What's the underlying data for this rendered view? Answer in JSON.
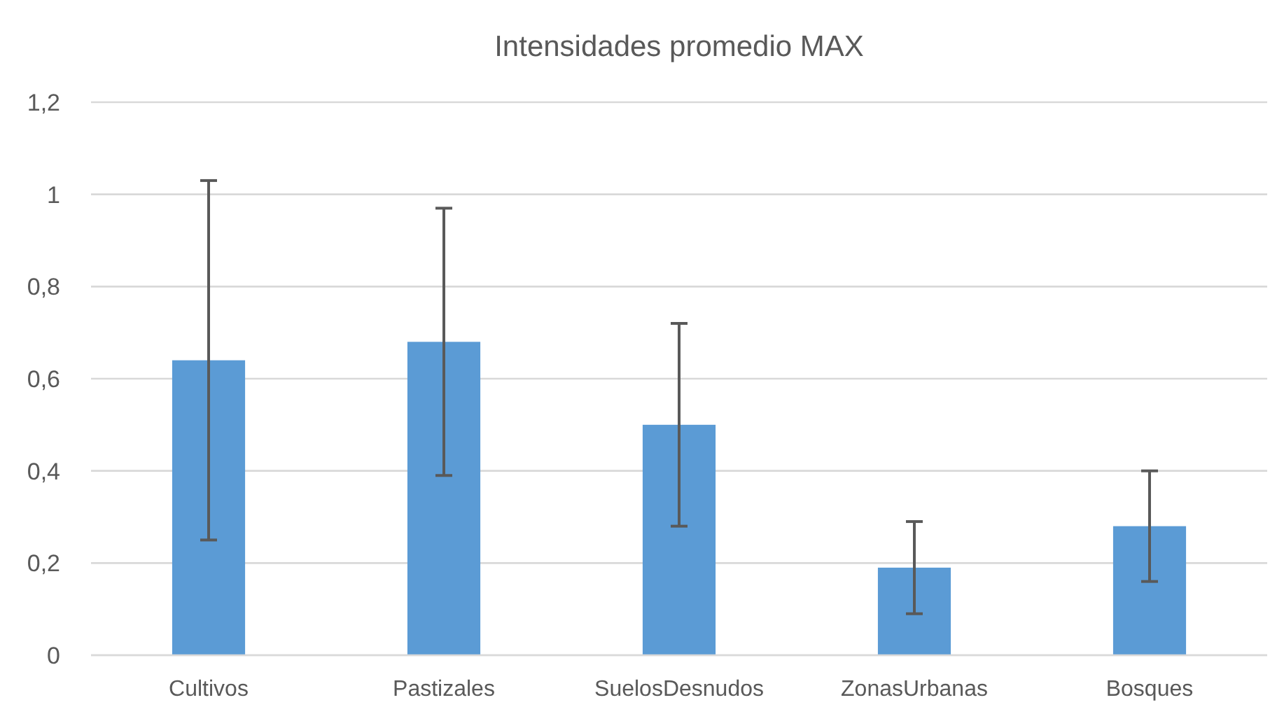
{
  "chart_data": {
    "type": "bar",
    "title": "Intensidades promedio MAX",
    "categories": [
      "Cultivos",
      "Pastizales",
      "SuelosDesnudos",
      "ZonasUrbanas",
      "Bosques"
    ],
    "values": [
      0.64,
      0.68,
      0.5,
      0.19,
      0.28
    ],
    "errors": [
      0.39,
      0.29,
      0.22,
      0.1,
      0.12
    ],
    "color": "#5b9bd5",
    "ylim": [
      0,
      1.2
    ],
    "yticks": [
      {
        "value": 0,
        "label": "0"
      },
      {
        "value": 0.2,
        "label": "0,2"
      },
      {
        "value": 0.4,
        "label": "0,4"
      },
      {
        "value": 0.6,
        "label": "0,6"
      },
      {
        "value": 0.8,
        "label": "0,8"
      },
      {
        "value": 1,
        "label": "1"
      },
      {
        "value": 1.2,
        "label": "1,2"
      }
    ],
    "grid": "y"
  }
}
